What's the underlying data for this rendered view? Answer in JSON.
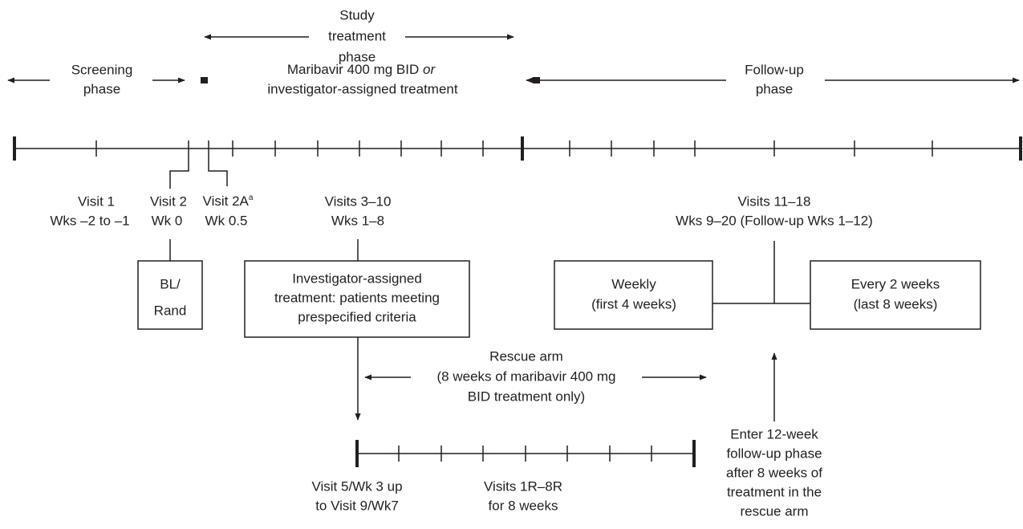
{
  "study_phase": [
    "Study",
    "treatment",
    "phase"
  ],
  "screening_phase": [
    "Screening",
    "phase"
  ],
  "treatment_phase": {
    "line1": "Maribavir 400 mg BID",
    "line1_italic": "or",
    "line2": "investigator-assigned treatment"
  },
  "followup_phase": [
    "Follow-up",
    "phase"
  ],
  "visit_1": [
    "Visit 1",
    "Wks –2 to –1"
  ],
  "visit_2": [
    "Visit 2",
    "Wk 0"
  ],
  "visit_2a": {
    "label": "Visit 2A",
    "footnote": "a",
    "week": "Wk 0.5"
  },
  "visits_3_10": [
    "Visits 3–10",
    "Wks 1–8"
  ],
  "visits_11_18": [
    "Visits 11–18",
    "Wks 9–20 (Follow-up Wks 1–12)"
  ],
  "box_bl_rand": [
    "BL/",
    "Rand"
  ],
  "box_investigator": [
    "Investigator-assigned",
    "treatment: patients meeting",
    "prespecified criteria"
  ],
  "box_weekly": [
    "Weekly",
    "(first 4 weeks)"
  ],
  "box_every2": [
    "Every 2 weeks",
    "(last 8 weeks)"
  ],
  "rescue_arm": [
    "Rescue arm",
    "(8 weeks of maribavir 400 mg",
    "BID treatment only)"
  ],
  "rescue_start": [
    "Visit 5/Wk 3 up",
    "to Visit 9/Wk7"
  ],
  "rescue_visits": [
    "Visits 1R–8R",
    "for 8 weeks"
  ],
  "enter_followup": [
    "Enter 12-week",
    "follow-up phase",
    "after 8 weeks of",
    "treatment in the",
    "rescue arm"
  ]
}
